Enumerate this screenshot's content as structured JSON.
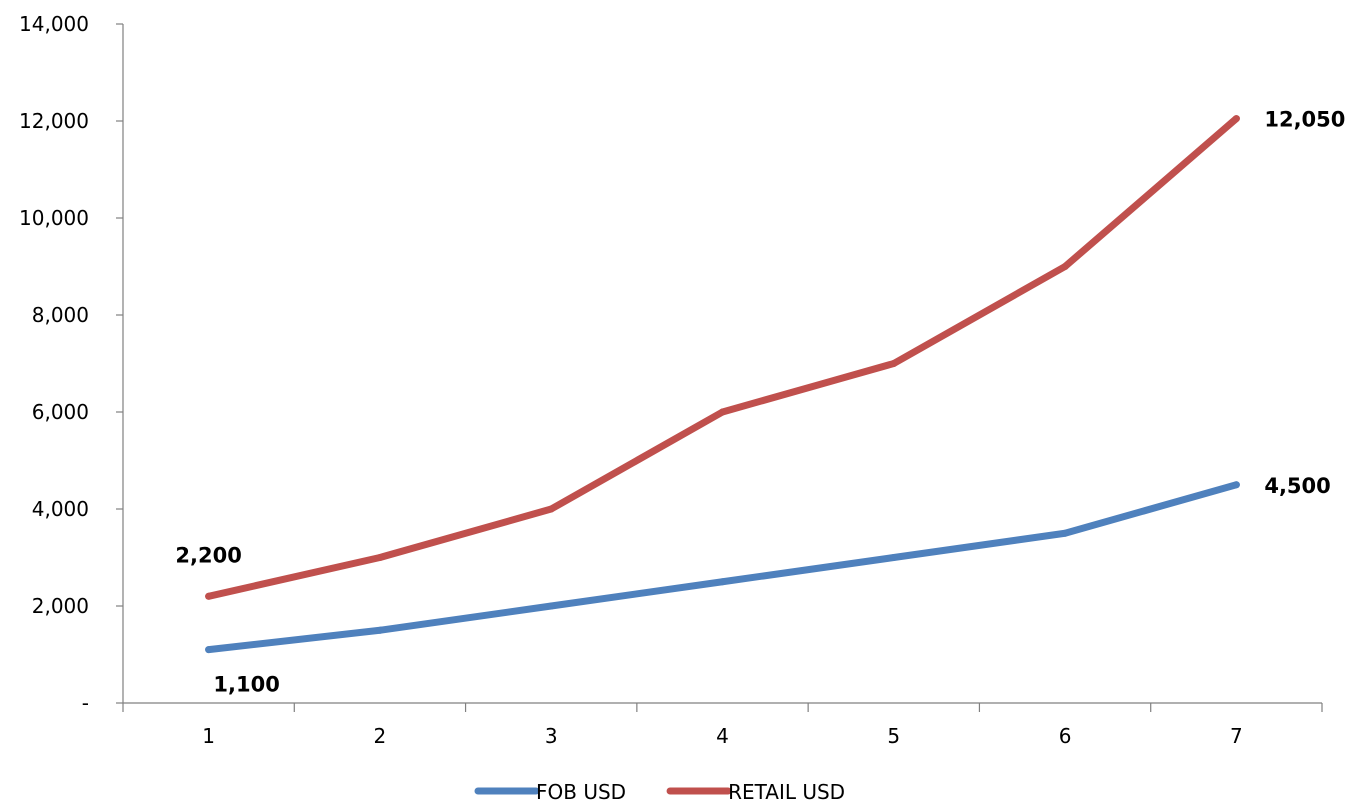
{
  "chart_data": {
    "type": "line",
    "title": "",
    "xlabel": "",
    "ylabel": "",
    "x": [
      1,
      2,
      3,
      4,
      5,
      6,
      7
    ],
    "x_tick_labels": [
      "1",
      "2",
      "3",
      "4",
      "5",
      "6",
      "7"
    ],
    "ylim": [
      0,
      14000
    ],
    "y_ticks": [
      0,
      2000,
      4000,
      6000,
      8000,
      10000,
      12000,
      14000
    ],
    "y_tick_labels": [
      "-",
      "2,000",
      "4,000",
      "6,000",
      "8,000",
      "10,000",
      "12,000",
      "14,000"
    ],
    "grid": false,
    "legend_position": "bottom",
    "series": [
      {
        "name": "FOB USD",
        "color": "#4F81BD",
        "values": [
          1100,
          1500,
          2000,
          2500,
          3000,
          3500,
          4500
        ],
        "data_labels": [
          {
            "index": 0,
            "text": "1,100",
            "placement": "below"
          },
          {
            "index": 6,
            "text": "4,500",
            "placement": "right"
          }
        ]
      },
      {
        "name": "RETAIL USD",
        "color": "#C0504D",
        "values": [
          2200,
          3000,
          4000,
          6000,
          7000,
          9000,
          12050
        ],
        "data_labels": [
          {
            "index": 0,
            "text": "2,200",
            "placement": "above"
          },
          {
            "index": 6,
            "text": "12,050",
            "placement": "right"
          }
        ]
      }
    ]
  }
}
